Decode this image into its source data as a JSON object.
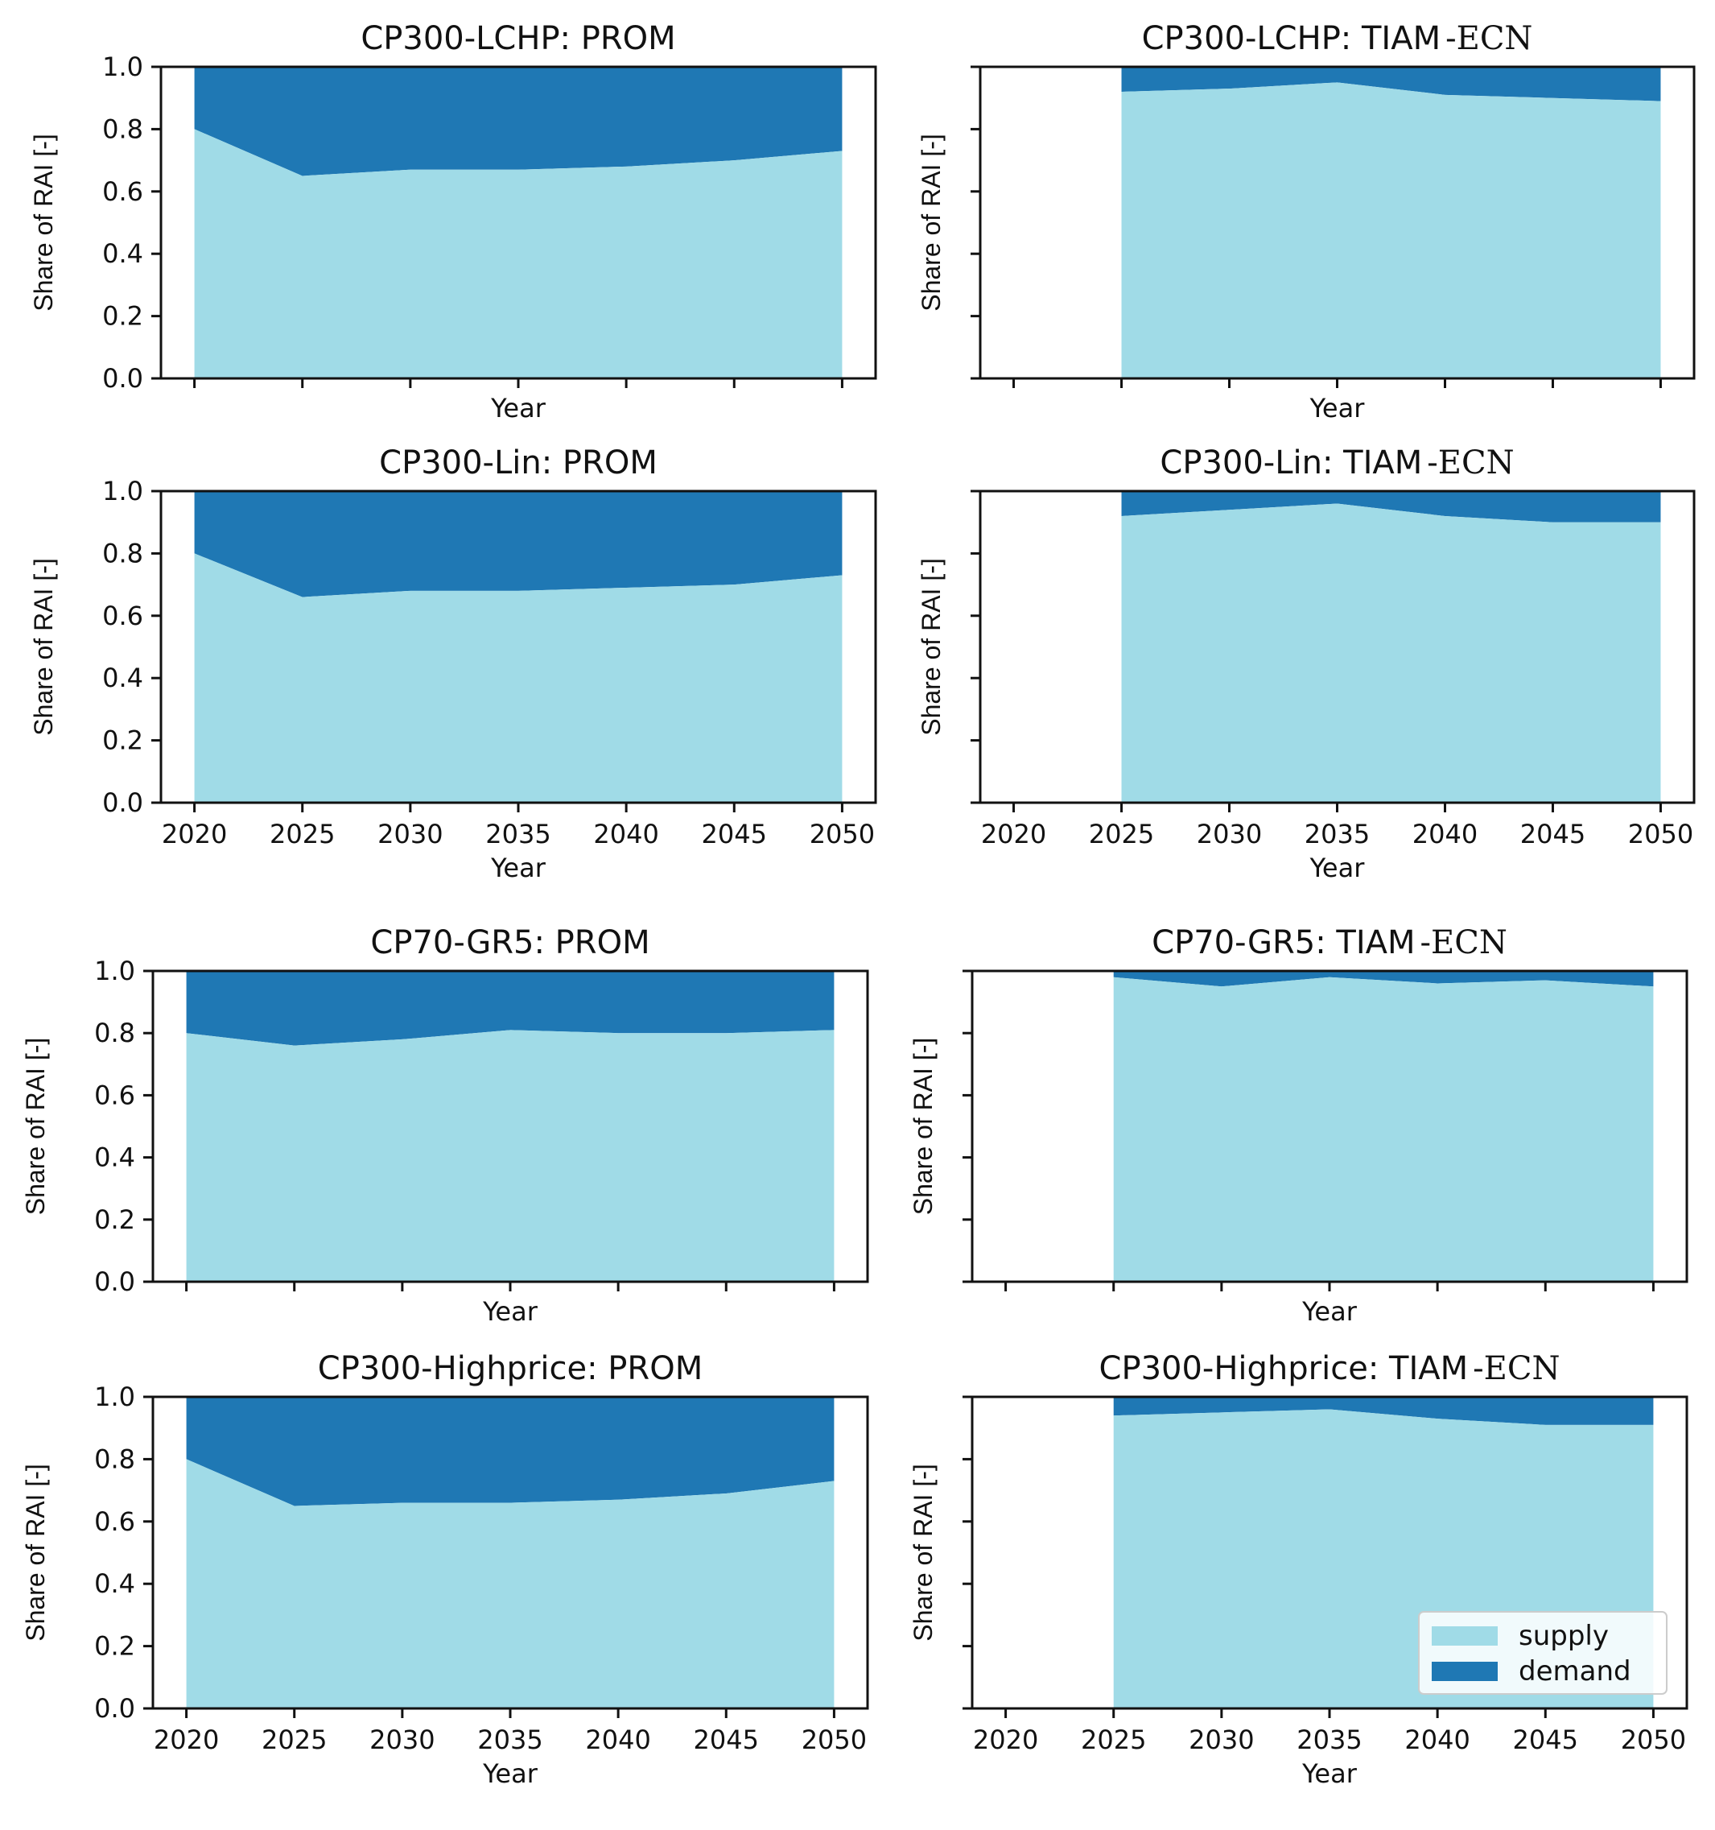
{
  "colors": {
    "supply": "#a0dbe7",
    "demand": "#1f78b4"
  },
  "legend": {
    "position": "lower-right",
    "entries": [
      "supply",
      "demand"
    ]
  },
  "chart_data": [
    {
      "type": "area",
      "title": "CP300-LCHP: PROM",
      "title_suffix": "",
      "xlabel": "Year",
      "ylabel": "Share of RAI [-]",
      "ylim": [
        0,
        1
      ],
      "xticks": [
        "2020",
        "2025",
        "2030",
        "2035",
        "2040",
        "2045",
        "2050"
      ],
      "show_xtick_labels": false,
      "yticks": [
        "0.0",
        "0.2",
        "0.4",
        "0.6",
        "0.8",
        "1.0"
      ],
      "show_ytick_labels": true,
      "x": [
        2020,
        2025,
        2030,
        2035,
        2040,
        2045,
        2050
      ],
      "series": [
        {
          "name": "supply",
          "values": [
            0.8,
            0.65,
            0.67,
            0.67,
            0.68,
            0.7,
            0.73
          ]
        },
        {
          "name": "demand",
          "values": [
            0.2,
            0.35,
            0.33,
            0.33,
            0.32,
            0.3,
            0.27
          ]
        }
      ]
    },
    {
      "type": "area",
      "title": "CP300-LCHP: TIAM",
      "title_suffix": "-ECN",
      "xlabel": "Year",
      "ylabel": "Share of RAI [-]",
      "ylim": [
        0,
        1
      ],
      "xticks": [
        "2020",
        "2025",
        "2030",
        "2035",
        "2040",
        "2045",
        "2050"
      ],
      "show_xtick_labels": false,
      "yticks": [
        "0.0",
        "0.2",
        "0.4",
        "0.6",
        "0.8",
        "1.0"
      ],
      "show_ytick_labels": false,
      "x": [
        2025,
        2030,
        2035,
        2040,
        2045,
        2050
      ],
      "series": [
        {
          "name": "supply",
          "values": [
            0.92,
            0.93,
            0.95,
            0.91,
            0.9,
            0.89
          ]
        },
        {
          "name": "demand",
          "values": [
            0.08,
            0.07,
            0.05,
            0.09,
            0.1,
            0.11
          ]
        }
      ]
    },
    {
      "type": "area",
      "title": "CP300-Lin: PROM",
      "title_suffix": "",
      "xlabel": "Year",
      "ylabel": "Share of RAI [-]",
      "ylim": [
        0,
        1
      ],
      "xticks": [
        "2020",
        "2025",
        "2030",
        "2035",
        "2040",
        "2045",
        "2050"
      ],
      "show_xtick_labels": true,
      "yticks": [
        "0.0",
        "0.2",
        "0.4",
        "0.6",
        "0.8",
        "1.0"
      ],
      "show_ytick_labels": true,
      "x": [
        2020,
        2025,
        2030,
        2035,
        2040,
        2045,
        2050
      ],
      "series": [
        {
          "name": "supply",
          "values": [
            0.8,
            0.66,
            0.68,
            0.68,
            0.69,
            0.7,
            0.73
          ]
        },
        {
          "name": "demand",
          "values": [
            0.2,
            0.34,
            0.32,
            0.32,
            0.31,
            0.3,
            0.27
          ]
        }
      ]
    },
    {
      "type": "area",
      "title": "CP300-Lin: TIAM",
      "title_suffix": "-ECN",
      "xlabel": "Year",
      "ylabel": "Share of RAI [-]",
      "ylim": [
        0,
        1
      ],
      "xticks": [
        "2020",
        "2025",
        "2030",
        "2035",
        "2040",
        "2045",
        "2050"
      ],
      "show_xtick_labels": true,
      "yticks": [
        "0.0",
        "0.2",
        "0.4",
        "0.6",
        "0.8",
        "1.0"
      ],
      "show_ytick_labels": false,
      "x": [
        2025,
        2030,
        2035,
        2040,
        2045,
        2050
      ],
      "series": [
        {
          "name": "supply",
          "values": [
            0.92,
            0.94,
            0.96,
            0.92,
            0.9,
            0.9
          ]
        },
        {
          "name": "demand",
          "values": [
            0.08,
            0.06,
            0.04,
            0.08,
            0.1,
            0.1
          ]
        }
      ]
    },
    {
      "type": "area",
      "title": "CP70-GR5: PROM",
      "title_suffix": "",
      "xlabel": "Year",
      "ylabel": "Share of RAI [-]",
      "ylim": [
        0,
        1
      ],
      "xticks": [
        "2020",
        "2025",
        "2030",
        "2035",
        "2040",
        "2045",
        "2050"
      ],
      "show_xtick_labels": false,
      "yticks": [
        "0.0",
        "0.2",
        "0.4",
        "0.6",
        "0.8",
        "1.0"
      ],
      "show_ytick_labels": true,
      "x": [
        2020,
        2025,
        2030,
        2035,
        2040,
        2045,
        2050
      ],
      "series": [
        {
          "name": "supply",
          "values": [
            0.8,
            0.76,
            0.78,
            0.81,
            0.8,
            0.8,
            0.81
          ]
        },
        {
          "name": "demand",
          "values": [
            0.2,
            0.24,
            0.22,
            0.19,
            0.2,
            0.2,
            0.19
          ]
        }
      ]
    },
    {
      "type": "area",
      "title": "CP70-GR5: TIAM",
      "title_suffix": "-ECN",
      "xlabel": "Year",
      "ylabel": "Share of RAI [-]",
      "ylim": [
        0,
        1
      ],
      "xticks": [
        "2020",
        "2025",
        "2030",
        "2035",
        "2040",
        "2045",
        "2050"
      ],
      "show_xtick_labels": false,
      "yticks": [
        "0.0",
        "0.2",
        "0.4",
        "0.6",
        "0.8",
        "1.0"
      ],
      "show_ytick_labels": false,
      "x": [
        2025,
        2030,
        2035,
        2040,
        2045,
        2050
      ],
      "series": [
        {
          "name": "supply",
          "values": [
            0.98,
            0.95,
            0.98,
            0.96,
            0.97,
            0.95
          ]
        },
        {
          "name": "demand",
          "values": [
            0.02,
            0.05,
            0.02,
            0.04,
            0.03,
            0.05
          ]
        }
      ]
    },
    {
      "type": "area",
      "title": "CP300-Highprice: PROM",
      "title_suffix": "",
      "xlabel": "Year",
      "ylabel": "Share of RAI [-]",
      "ylim": [
        0,
        1
      ],
      "xticks": [
        "2020",
        "2025",
        "2030",
        "2035",
        "2040",
        "2045",
        "2050"
      ],
      "show_xtick_labels": true,
      "yticks": [
        "0.0",
        "0.2",
        "0.4",
        "0.6",
        "0.8",
        "1.0"
      ],
      "show_ytick_labels": true,
      "x": [
        2020,
        2025,
        2030,
        2035,
        2040,
        2045,
        2050
      ],
      "series": [
        {
          "name": "supply",
          "values": [
            0.8,
            0.65,
            0.66,
            0.66,
            0.67,
            0.69,
            0.73
          ]
        },
        {
          "name": "demand",
          "values": [
            0.2,
            0.35,
            0.34,
            0.34,
            0.33,
            0.31,
            0.27
          ]
        }
      ]
    },
    {
      "type": "area",
      "title": "CP300-Highprice: TIAM",
      "title_suffix": "-ECN",
      "xlabel": "Year",
      "ylabel": "Share of RAI [-]",
      "ylim": [
        0,
        1
      ],
      "xticks": [
        "2020",
        "2025",
        "2030",
        "2035",
        "2040",
        "2045",
        "2050"
      ],
      "show_xtick_labels": true,
      "yticks": [
        "0.0",
        "0.2",
        "0.4",
        "0.6",
        "0.8",
        "1.0"
      ],
      "show_ytick_labels": false,
      "x": [
        2025,
        2030,
        2035,
        2040,
        2045,
        2050
      ],
      "series": [
        {
          "name": "supply",
          "values": [
            0.94,
            0.95,
            0.96,
            0.93,
            0.91,
            0.91
          ]
        },
        {
          "name": "demand",
          "values": [
            0.06,
            0.05,
            0.04,
            0.07,
            0.09,
            0.09
          ]
        }
      ]
    }
  ]
}
